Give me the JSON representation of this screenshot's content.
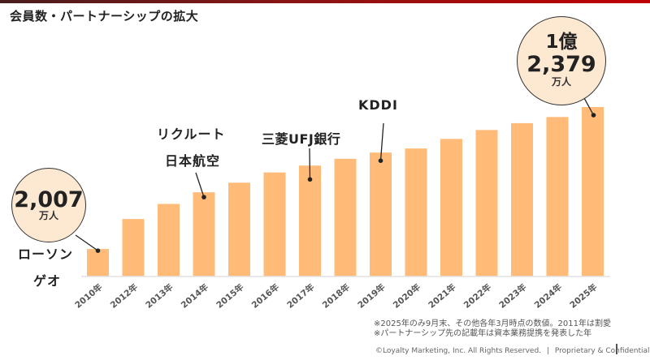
{
  "header": {
    "title": "会員数・パートナーシップの拡大"
  },
  "callouts": {
    "start": {
      "value": "2,007",
      "unit": "万人"
    },
    "end": {
      "value_top": "1億",
      "value": "2,379",
      "unit": "万人"
    }
  },
  "partners": [
    {
      "name": "ローソン",
      "year": "2010年"
    },
    {
      "name": "ゲオ",
      "year": "2010年"
    },
    {
      "name": "リクルート",
      "year": "2014年"
    },
    {
      "name": "日本航空",
      "year": "2014年"
    },
    {
      "name": "三菱UFJ銀行",
      "year": "2017年"
    },
    {
      "name": "KDDI",
      "year": "2019年"
    }
  ],
  "notes": [
    "※2025年のみ9月末、その他各年3月時点の数値。2011年は割愛",
    "※パートナーシップ先の記載年は資本業務提携を発表した年"
  ],
  "footer": {
    "copyright": "©Loyalty Marketing, Inc. All Rights Reserved.",
    "separator": "|",
    "label": "Proprietary & Confidential"
  },
  "colors": {
    "bar": "#ffbb77",
    "callout_fill": "#fde8d2",
    "accent": "#c00000"
  },
  "chart_data": {
    "type": "bar",
    "title": "会員数・パートナーシップの拡大",
    "xlabel": "",
    "ylabel": "",
    "unit": "万人",
    "categories": [
      "2010年",
      "2012年",
      "2013年",
      "2014年",
      "2015年",
      "2016年",
      "2017年",
      "2018年",
      "2019年",
      "2020年",
      "2021年",
      "2022年",
      "2023年",
      "2024年",
      "2025年"
    ],
    "values": [
      2007,
      4200,
      5300,
      6150,
      6850,
      7600,
      8100,
      8600,
      9050,
      9350,
      10050,
      10700,
      11200,
      11650,
      12379
    ],
    "ylim": [
      0,
      12379
    ],
    "grid": false,
    "legend": "none"
  }
}
